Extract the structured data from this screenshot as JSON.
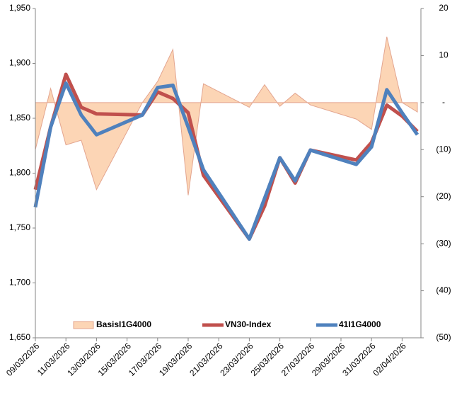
{
  "chart_data": {
    "type": "combo",
    "x": [
      "09/03/2026",
      "10/03/2026",
      "11/03/2026",
      "12/03/2026",
      "13/03/2026",
      "16/03/2026",
      "17/03/2026",
      "18/03/2026",
      "19/03/2026",
      "20/03/2026",
      "23/03/2026",
      "24/03/2026",
      "25/03/2026",
      "26/03/2026",
      "27/03/2026",
      "30/03/2026",
      "31/03/2026",
      "01/04/2026",
      "02/04/2026",
      "03/04/2026"
    ],
    "xticks": [
      "09/03/2026",
      "11/03/2026",
      "13/03/2026",
      "15/03/2026",
      "17/03/2026",
      "19/03/2026",
      "21/03/2026",
      "23/03/2026",
      "25/03/2026",
      "27/03/2026",
      "29/03/2026",
      "31/03/2026",
      "02/04/2026"
    ],
    "series": [
      {
        "name": "BasisI1G4000",
        "type": "area",
        "axis": "y2",
        "color": "#fcd5b5",
        "stroke": "#e3a58f",
        "values": [
          -10,
          3,
          -9,
          -8,
          -18.5,
          0,
          4.5,
          11.3,
          -19.7,
          4,
          -1,
          3.8,
          -0.8,
          2,
          -0.5,
          -3.5,
          -5.7,
          14,
          0,
          -2
        ]
      },
      {
        "name": "VN30-Index",
        "type": "line",
        "color": "#c0504d",
        "values": [
          1785,
          1842,
          1890,
          1860,
          1854,
          1853,
          1874,
          1868,
          1855,
          1798,
          1740,
          1770,
          1814,
          1791,
          1821,
          1812,
          1828,
          1862,
          1852,
          1838
        ]
      },
      {
        "name": "41I1G4000",
        "type": "line",
        "color": "#4f81bd",
        "values": [
          1769,
          1842,
          1882,
          1853,
          1835,
          1853,
          1878,
          1880,
          1842,
          1803,
          1740,
          1777,
          1814,
          1793,
          1821,
          1808,
          1824,
          1876,
          1855,
          1835
        ]
      }
    ],
    "ylim": [
      1650,
      1950
    ],
    "yticks": [
      {
        "value": 1650,
        "label": "1,650"
      },
      {
        "value": 1700,
        "label": "1,700"
      },
      {
        "value": 1750,
        "label": "1,750"
      },
      {
        "value": 1800,
        "label": "1,800"
      },
      {
        "value": 1850,
        "label": "1,850"
      },
      {
        "value": 1900,
        "label": "1,900"
      },
      {
        "value": 1950,
        "label": "1,950"
      }
    ],
    "y2lim": [
      -50,
      20
    ],
    "y2ticks": [
      {
        "value": -50,
        "label": "(50)"
      },
      {
        "value": -40,
        "label": "(40)"
      },
      {
        "value": -30,
        "label": "(30)"
      },
      {
        "value": -20,
        "label": "(20)"
      },
      {
        "value": -10,
        "label": "(10)"
      },
      {
        "value": 0,
        "label": "-"
      },
      10,
      20
    ],
    "legend": "bottom"
  }
}
